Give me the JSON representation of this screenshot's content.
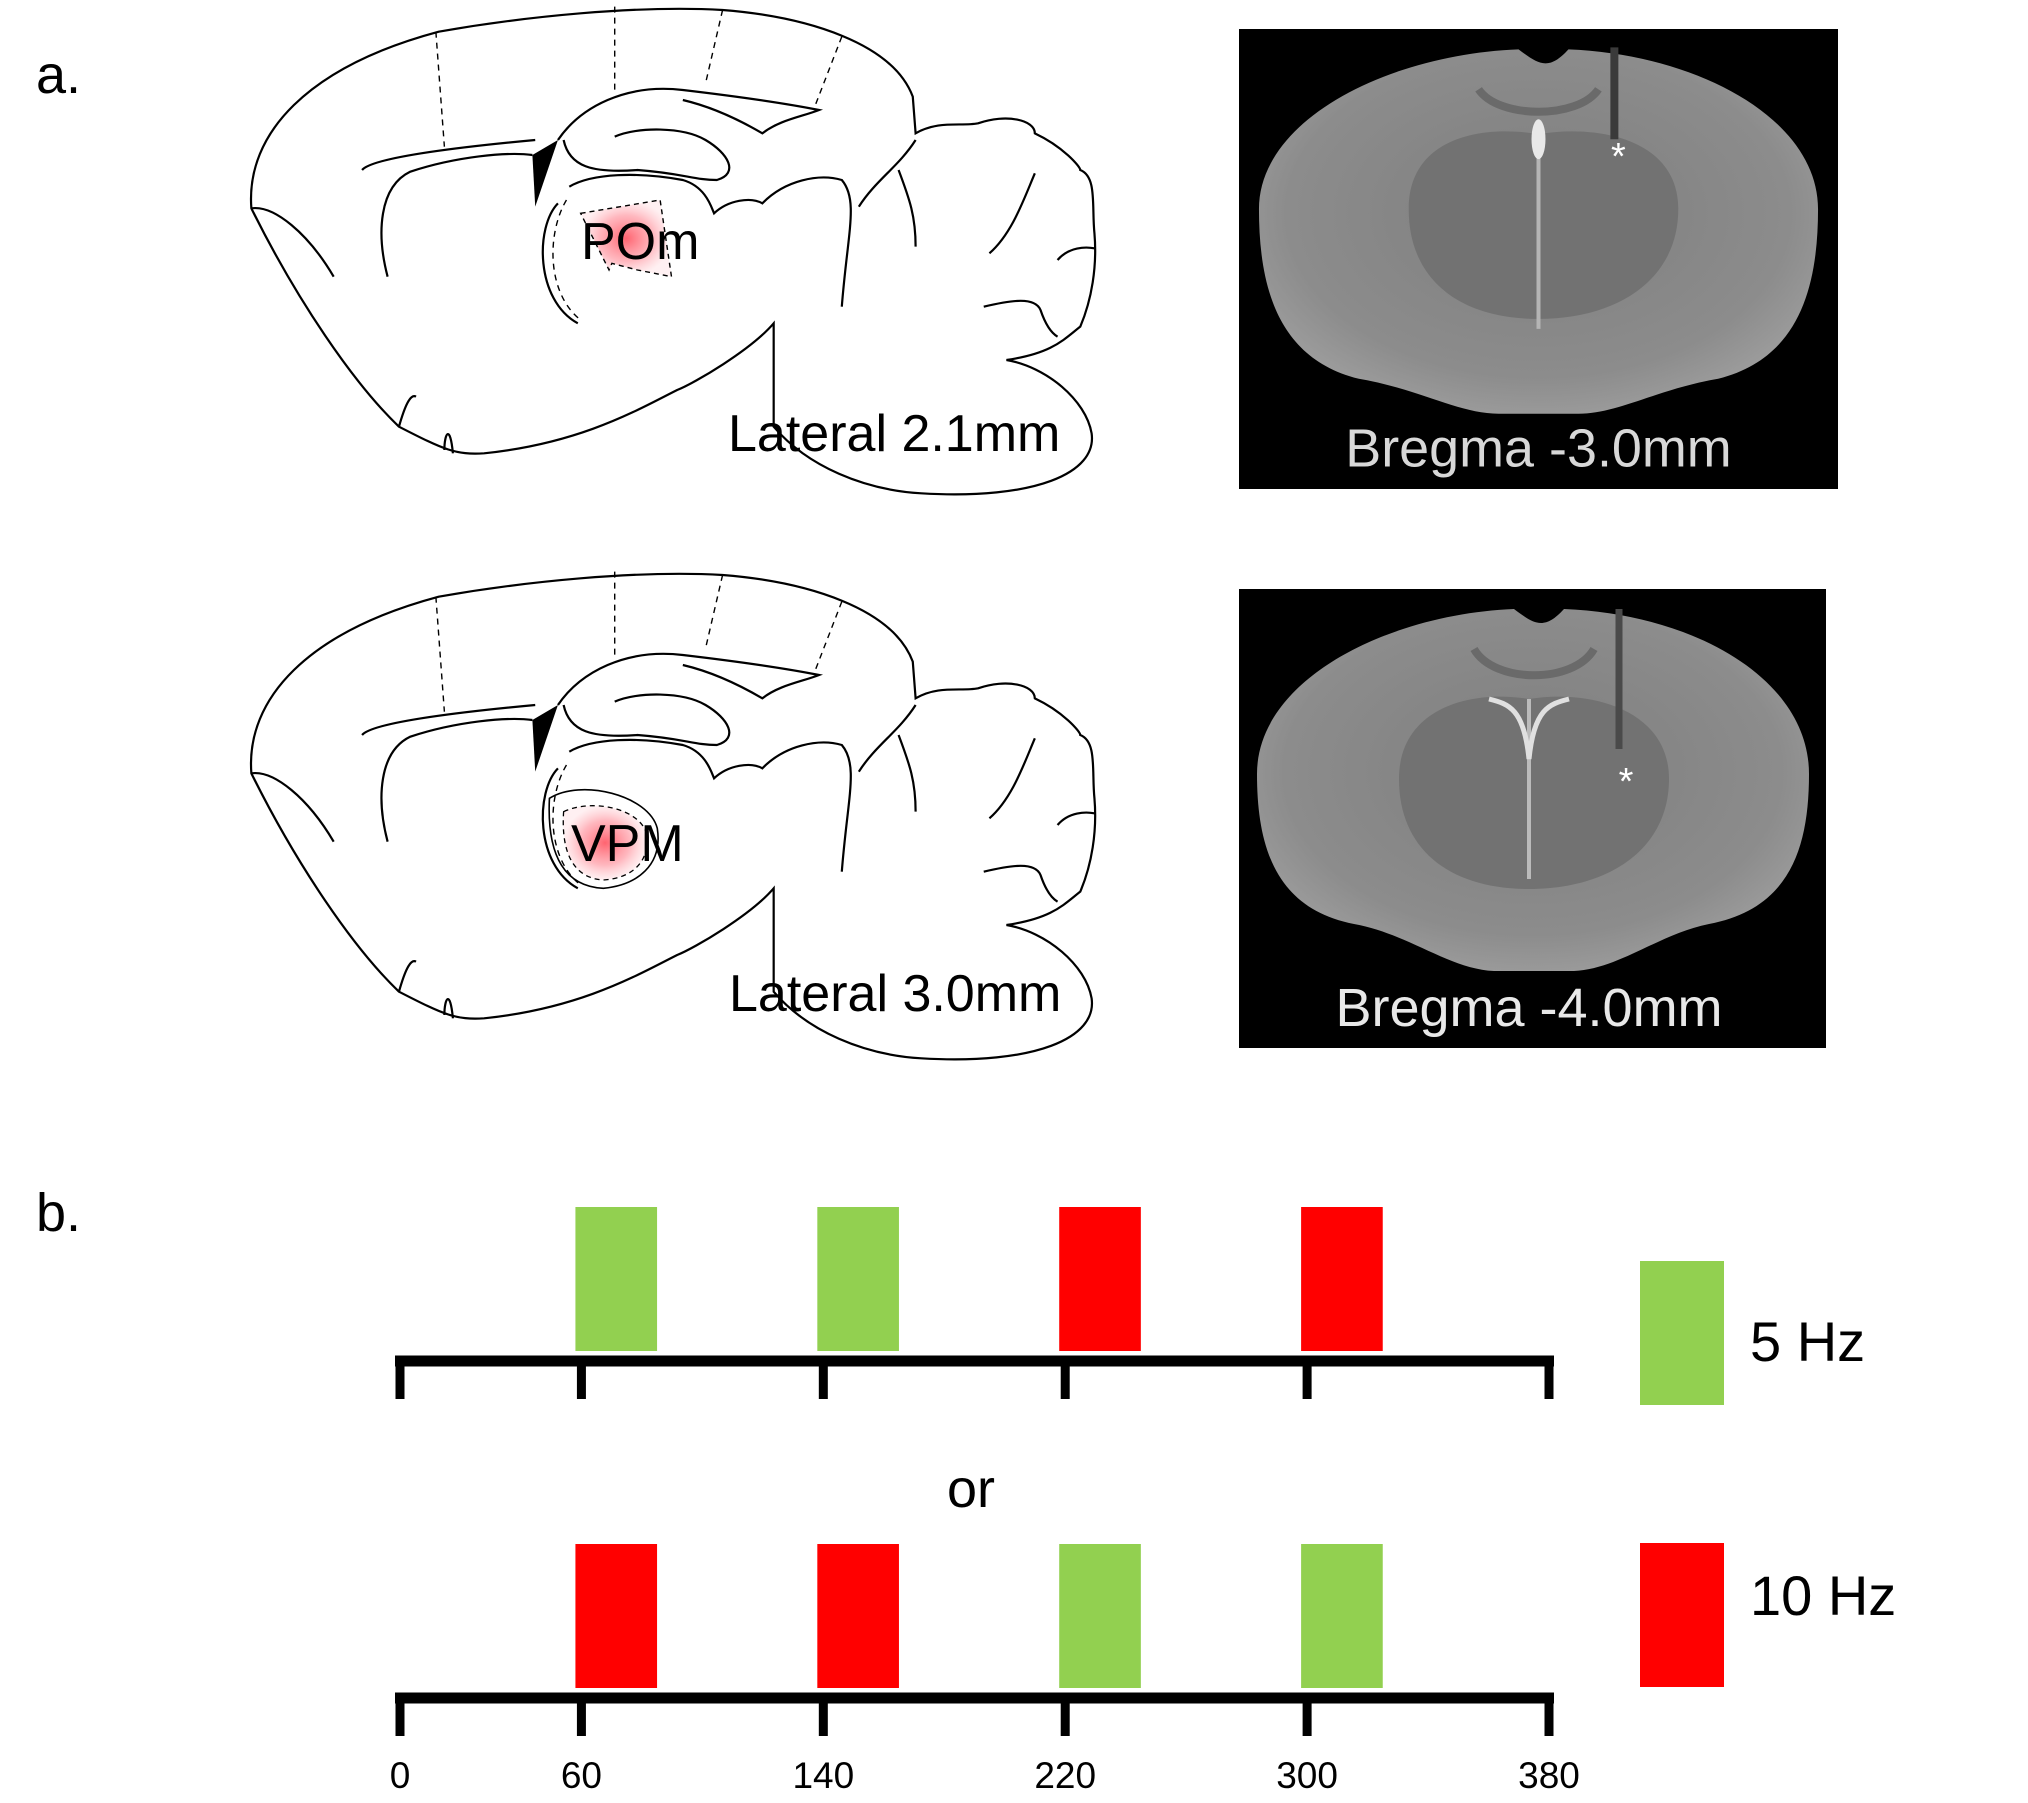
{
  "panel_a": {
    "label": "a.",
    "sagittal": [
      {
        "region": "POm",
        "lateral_label": "Lateral 2.1mm"
      },
      {
        "region": "VPM",
        "lateral_label": "Lateral 3.0mm"
      }
    ],
    "mri": [
      {
        "label": "Bregma -3.0mm",
        "marker": "*"
      },
      {
        "label": "Bregma -4.0mm",
        "marker": "*"
      }
    ],
    "highlight_color": "#FF0000"
  },
  "panel_b": {
    "label": "b.",
    "separator": "or",
    "legend": [
      {
        "label": "5 Hz",
        "color": "#92D050"
      },
      {
        "label": "10 Hz",
        "color": "#FF0000"
      }
    ]
  },
  "chart_data": {
    "type": "timeline",
    "xlim": [
      0,
      380
    ],
    "ticks": [
      0,
      60,
      140,
      220,
      300,
      380
    ],
    "tick_labels": [
      "0",
      "60",
      "140",
      "220",
      "300",
      "380"
    ],
    "tick_labels_shown_on": "bottom row only",
    "stimulus_duration_estimate": 27,
    "rows": [
      {
        "blocks": [
          {
            "start": 60,
            "condition": "5 Hz"
          },
          {
            "start": 140,
            "condition": "5 Hz"
          },
          {
            "start": 220,
            "condition": "10 Hz"
          },
          {
            "start": 300,
            "condition": "10 Hz"
          }
        ]
      },
      {
        "blocks": [
          {
            "start": 60,
            "condition": "10 Hz"
          },
          {
            "start": 140,
            "condition": "10 Hz"
          },
          {
            "start": 220,
            "condition": "5 Hz"
          },
          {
            "start": 300,
            "condition": "5 Hz"
          }
        ]
      }
    ],
    "colors": {
      "5 Hz": "#92D050",
      "10 Hz": "#FF0000"
    }
  }
}
